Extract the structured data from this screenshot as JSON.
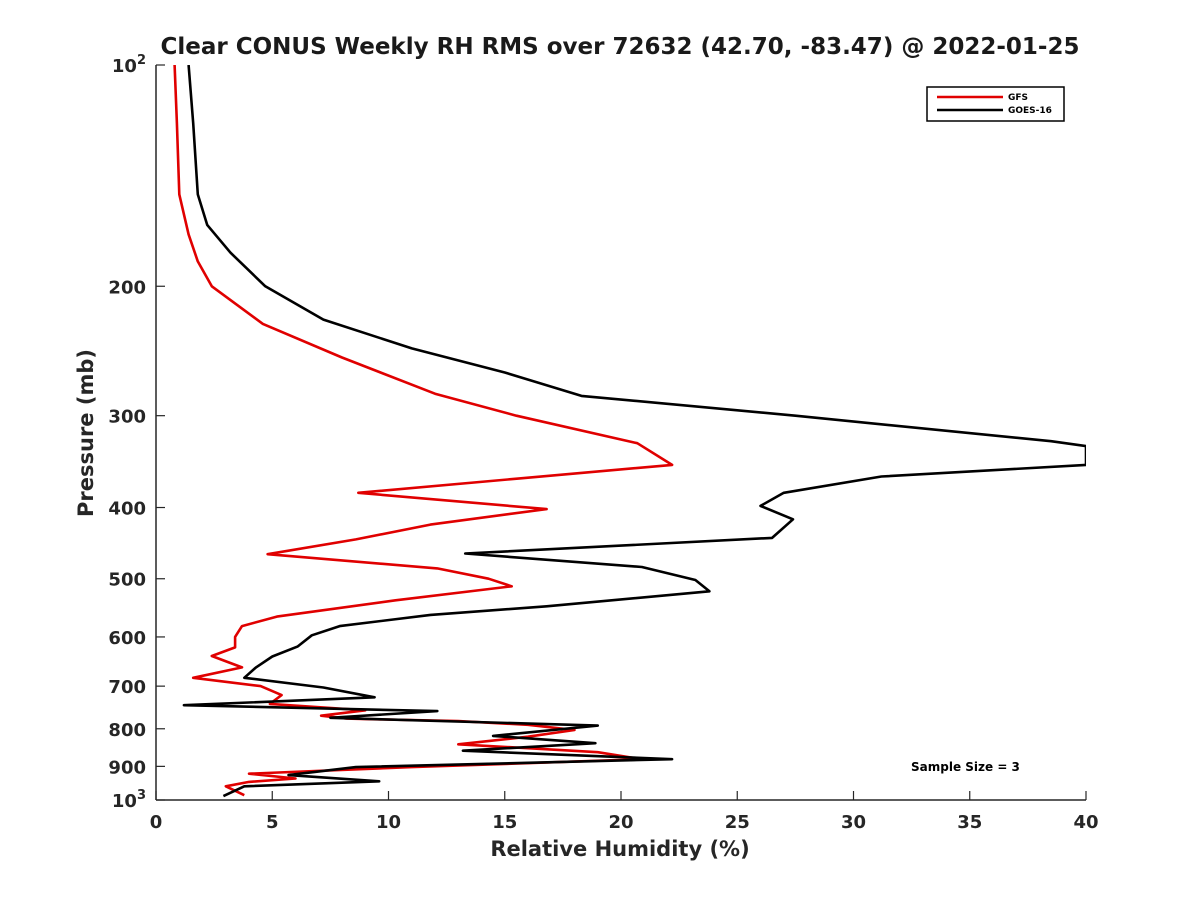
{
  "chart_data": {
    "type": "line",
    "title": "Clear CONUS Weekly RH RMS over 72632 (42.70, -83.47) @ 2022-01-25",
    "xlabel": "Relative Humidity (%)",
    "ylabel": "Pressure (mb)",
    "xlim": [
      0,
      40
    ],
    "ylim": [
      100,
      1000
    ],
    "y_scale": "log",
    "y_reversed": true,
    "x_ticks": [
      0,
      5,
      10,
      15,
      20,
      25,
      30,
      35,
      40
    ],
    "y_ticks": [
      {
        "value": 100,
        "base": "10",
        "exp": "2"
      },
      {
        "value": 200,
        "label": "200"
      },
      {
        "value": 300,
        "label": "300"
      },
      {
        "value": 400,
        "label": "400"
      },
      {
        "value": 500,
        "label": "500"
      },
      {
        "value": 600,
        "label": "600"
      },
      {
        "value": 700,
        "label": "700"
      },
      {
        "value": 800,
        "label": "800"
      },
      {
        "value": 900,
        "label": "900"
      },
      {
        "value": 1000,
        "base": "10",
        "exp": "3"
      }
    ],
    "grid": false,
    "legend_position": "top-right",
    "series": [
      {
        "name": "GFS",
        "color": "#e00000",
        "points": [
          [
            0.8,
            100
          ],
          [
            0.9,
            120
          ],
          [
            1.0,
            150
          ],
          [
            1.4,
            170
          ],
          [
            1.8,
            185
          ],
          [
            2.4,
            200
          ],
          [
            4.6,
            225
          ],
          [
            8.0,
            250
          ],
          [
            12.0,
            280
          ],
          [
            15.5,
            300
          ],
          [
            20.7,
            327
          ],
          [
            22.2,
            350
          ],
          [
            15.7,
            365
          ],
          [
            8.7,
            382
          ],
          [
            16.8,
            402
          ],
          [
            11.8,
            422
          ],
          [
            8.6,
            442
          ],
          [
            4.8,
            463
          ],
          [
            12.1,
            484
          ],
          [
            14.3,
            500
          ],
          [
            15.3,
            512
          ],
          [
            10.3,
            535
          ],
          [
            5.2,
            563
          ],
          [
            3.7,
            580
          ],
          [
            3.4,
            600
          ],
          [
            3.4,
            620
          ],
          [
            2.4,
            637
          ],
          [
            3.7,
            660
          ],
          [
            1.6,
            682
          ],
          [
            4.5,
            700
          ],
          [
            5.4,
            720
          ],
          [
            4.9,
            740
          ],
          [
            9.0,
            755
          ],
          [
            7.1,
            768
          ],
          [
            8.2,
            775
          ],
          [
            13.0,
            781
          ],
          [
            16.0,
            790
          ],
          [
            18.0,
            803
          ],
          [
            16.0,
            820
          ],
          [
            13.0,
            840
          ],
          [
            19.0,
            861
          ],
          [
            20.9,
            880
          ],
          [
            11.0,
            902
          ],
          [
            4.0,
            921
          ],
          [
            6.0,
            935
          ],
          [
            4.0,
            945
          ],
          [
            3.0,
            958
          ],
          [
            3.8,
            985
          ]
        ]
      },
      {
        "name": "GOES-16",
        "color": "#000000",
        "points": [
          [
            1.4,
            100
          ],
          [
            1.6,
            120
          ],
          [
            1.8,
            150
          ],
          [
            2.2,
            165
          ],
          [
            3.2,
            180
          ],
          [
            4.7,
            200
          ],
          [
            7.2,
            222
          ],
          [
            11.0,
            243
          ],
          [
            15.0,
            262
          ],
          [
            18.3,
            282
          ],
          [
            27.5,
            300
          ],
          [
            38.5,
            325
          ],
          [
            40.0,
            330
          ],
          [
            40.0,
            350
          ],
          [
            31.2,
            363
          ],
          [
            27.0,
            382
          ],
          [
            26.0,
            398
          ],
          [
            27.4,
            415
          ],
          [
            26.5,
            440
          ],
          [
            13.3,
            462
          ],
          [
            20.9,
            482
          ],
          [
            23.2,
            502
          ],
          [
            23.8,
            520
          ],
          [
            16.8,
            545
          ],
          [
            11.8,
            560
          ],
          [
            7.9,
            580
          ],
          [
            6.7,
            597
          ],
          [
            6.1,
            618
          ],
          [
            5.0,
            638
          ],
          [
            4.3,
            660
          ],
          [
            3.8,
            682
          ],
          [
            7.2,
            703
          ],
          [
            9.4,
            725
          ],
          [
            1.2,
            743
          ],
          [
            12.1,
            757
          ],
          [
            7.5,
            773
          ],
          [
            19.0,
            792
          ],
          [
            14.5,
            818
          ],
          [
            18.9,
            837
          ],
          [
            13.2,
            857
          ],
          [
            22.2,
            880
          ],
          [
            8.6,
            902
          ],
          [
            5.7,
            925
          ],
          [
            9.6,
            943
          ],
          [
            3.8,
            958
          ],
          [
            2.9,
            988
          ]
        ]
      }
    ],
    "annotations": [
      {
        "text": "Sample Size = 3"
      }
    ]
  }
}
